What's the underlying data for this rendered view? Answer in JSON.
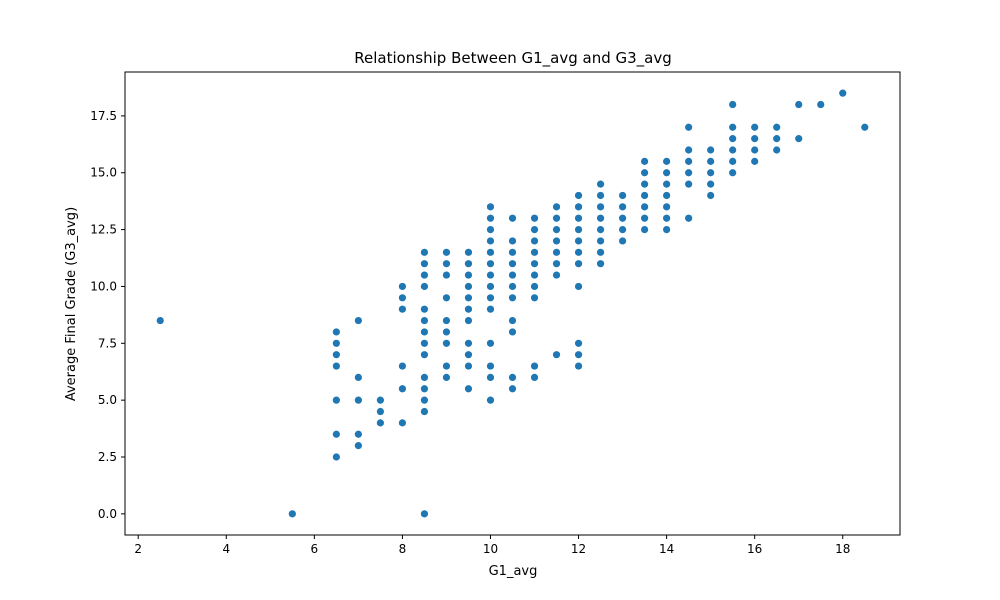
{
  "chart_data": {
    "type": "scatter",
    "title": "Relationship Between G1_avg and G3_avg",
    "xlabel": "G1_avg",
    "ylabel": "Average Final Grade (G3_avg)",
    "xlim": [
      1.7,
      19.3
    ],
    "ylim": [
      -0.93,
      19.43
    ],
    "xticks": [
      2,
      4,
      6,
      8,
      10,
      12,
      14,
      16,
      18
    ],
    "yticks": [
      0.0,
      2.5,
      5.0,
      7.5,
      10.0,
      12.5,
      15.0,
      17.5
    ],
    "grid": false,
    "marker_color": "#1f77b4",
    "points": [
      [
        2.5,
        8.5
      ],
      [
        5.5,
        0.0
      ],
      [
        6.5,
        2.5
      ],
      [
        6.5,
        3.5
      ],
      [
        6.5,
        5.0
      ],
      [
        6.5,
        6.5
      ],
      [
        6.5,
        7.0
      ],
      [
        6.5,
        7.5
      ],
      [
        6.5,
        8.0
      ],
      [
        7.0,
        3.0
      ],
      [
        7.0,
        3.5
      ],
      [
        7.0,
        5.0
      ],
      [
        7.0,
        6.0
      ],
      [
        7.0,
        8.5
      ],
      [
        7.5,
        4.0
      ],
      [
        7.5,
        4.5
      ],
      [
        7.5,
        5.0
      ],
      [
        8.0,
        4.0
      ],
      [
        8.0,
        5.5
      ],
      [
        8.0,
        6.5
      ],
      [
        8.0,
        9.0
      ],
      [
        8.0,
        9.5
      ],
      [
        8.0,
        10.0
      ],
      [
        8.5,
        0.0
      ],
      [
        8.5,
        4.5
      ],
      [
        8.5,
        5.0
      ],
      [
        8.5,
        5.5
      ],
      [
        8.5,
        6.0
      ],
      [
        8.5,
        7.0
      ],
      [
        8.5,
        7.5
      ],
      [
        8.5,
        8.0
      ],
      [
        8.5,
        8.5
      ],
      [
        8.5,
        9.0
      ],
      [
        8.5,
        10.0
      ],
      [
        8.5,
        10.5
      ],
      [
        8.5,
        11.0
      ],
      [
        8.5,
        11.5
      ],
      [
        9.0,
        6.0
      ],
      [
        9.0,
        6.5
      ],
      [
        9.0,
        7.5
      ],
      [
        9.0,
        8.0
      ],
      [
        9.0,
        8.5
      ],
      [
        9.0,
        9.5
      ],
      [
        9.0,
        10.5
      ],
      [
        9.0,
        11.0
      ],
      [
        9.0,
        11.5
      ],
      [
        9.5,
        5.5
      ],
      [
        9.5,
        6.5
      ],
      [
        9.5,
        7.0
      ],
      [
        9.5,
        7.5
      ],
      [
        9.5,
        8.5
      ],
      [
        9.5,
        9.0
      ],
      [
        9.5,
        9.5
      ],
      [
        9.5,
        10.0
      ],
      [
        9.5,
        10.5
      ],
      [
        9.5,
        11.0
      ],
      [
        9.5,
        11.5
      ],
      [
        10.0,
        5.0
      ],
      [
        10.0,
        6.0
      ],
      [
        10.0,
        6.5
      ],
      [
        10.0,
        7.5
      ],
      [
        10.0,
        9.0
      ],
      [
        10.0,
        9.5
      ],
      [
        10.0,
        10.0
      ],
      [
        10.0,
        10.5
      ],
      [
        10.0,
        11.0
      ],
      [
        10.0,
        11.5
      ],
      [
        10.0,
        12.0
      ],
      [
        10.0,
        12.5
      ],
      [
        10.0,
        13.0
      ],
      [
        10.0,
        13.5
      ],
      [
        10.5,
        5.5
      ],
      [
        10.5,
        6.0
      ],
      [
        10.5,
        8.0
      ],
      [
        10.5,
        8.5
      ],
      [
        10.5,
        9.5
      ],
      [
        10.5,
        10.0
      ],
      [
        10.5,
        10.5
      ],
      [
        10.5,
        11.0
      ],
      [
        10.5,
        11.5
      ],
      [
        10.5,
        12.0
      ],
      [
        10.5,
        13.0
      ],
      [
        11.0,
        6.0
      ],
      [
        11.0,
        6.5
      ],
      [
        11.0,
        9.5
      ],
      [
        11.0,
        10.0
      ],
      [
        11.0,
        10.5
      ],
      [
        11.0,
        11.0
      ],
      [
        11.0,
        11.5
      ],
      [
        11.0,
        12.0
      ],
      [
        11.0,
        12.5
      ],
      [
        11.0,
        13.0
      ],
      [
        11.5,
        7.0
      ],
      [
        11.5,
        10.5
      ],
      [
        11.5,
        11.0
      ],
      [
        11.5,
        11.5
      ],
      [
        11.5,
        12.0
      ],
      [
        11.5,
        12.5
      ],
      [
        11.5,
        13.0
      ],
      [
        11.5,
        13.5
      ],
      [
        12.0,
        6.5
      ],
      [
        12.0,
        7.0
      ],
      [
        12.0,
        7.5
      ],
      [
        12.0,
        10.0
      ],
      [
        12.0,
        11.0
      ],
      [
        12.0,
        11.5
      ],
      [
        12.0,
        12.0
      ],
      [
        12.0,
        12.5
      ],
      [
        12.0,
        13.0
      ],
      [
        12.0,
        13.5
      ],
      [
        12.0,
        14.0
      ],
      [
        12.5,
        11.0
      ],
      [
        12.5,
        11.5
      ],
      [
        12.5,
        12.0
      ],
      [
        12.5,
        12.5
      ],
      [
        12.5,
        13.0
      ],
      [
        12.5,
        13.5
      ],
      [
        12.5,
        14.0
      ],
      [
        12.5,
        14.5
      ],
      [
        13.0,
        12.0
      ],
      [
        13.0,
        12.5
      ],
      [
        13.0,
        13.0
      ],
      [
        13.0,
        13.5
      ],
      [
        13.0,
        14.0
      ],
      [
        13.5,
        12.5
      ],
      [
        13.5,
        13.0
      ],
      [
        13.5,
        13.5
      ],
      [
        13.5,
        14.0
      ],
      [
        13.5,
        14.5
      ],
      [
        13.5,
        15.0
      ],
      [
        13.5,
        15.5
      ],
      [
        14.0,
        12.5
      ],
      [
        14.0,
        13.0
      ],
      [
        14.0,
        13.5
      ],
      [
        14.0,
        14.0
      ],
      [
        14.0,
        14.5
      ],
      [
        14.0,
        15.0
      ],
      [
        14.0,
        15.5
      ],
      [
        14.5,
        13.0
      ],
      [
        14.5,
        14.5
      ],
      [
        14.5,
        15.0
      ],
      [
        14.5,
        15.5
      ],
      [
        14.5,
        16.0
      ],
      [
        14.5,
        17.0
      ],
      [
        15.0,
        14.0
      ],
      [
        15.0,
        14.5
      ],
      [
        15.0,
        15.0
      ],
      [
        15.0,
        15.5
      ],
      [
        15.0,
        16.0
      ],
      [
        15.5,
        15.0
      ],
      [
        15.5,
        15.5
      ],
      [
        15.5,
        16.0
      ],
      [
        15.5,
        16.5
      ],
      [
        15.5,
        17.0
      ],
      [
        15.5,
        18.0
      ],
      [
        16.0,
        15.5
      ],
      [
        16.0,
        16.0
      ],
      [
        16.0,
        16.5
      ],
      [
        16.0,
        17.0
      ],
      [
        16.5,
        16.0
      ],
      [
        16.5,
        16.5
      ],
      [
        16.5,
        17.0
      ],
      [
        17.0,
        16.5
      ],
      [
        17.0,
        18.0
      ],
      [
        17.5,
        18.0
      ],
      [
        18.0,
        18.5
      ],
      [
        18.5,
        17.0
      ]
    ]
  }
}
